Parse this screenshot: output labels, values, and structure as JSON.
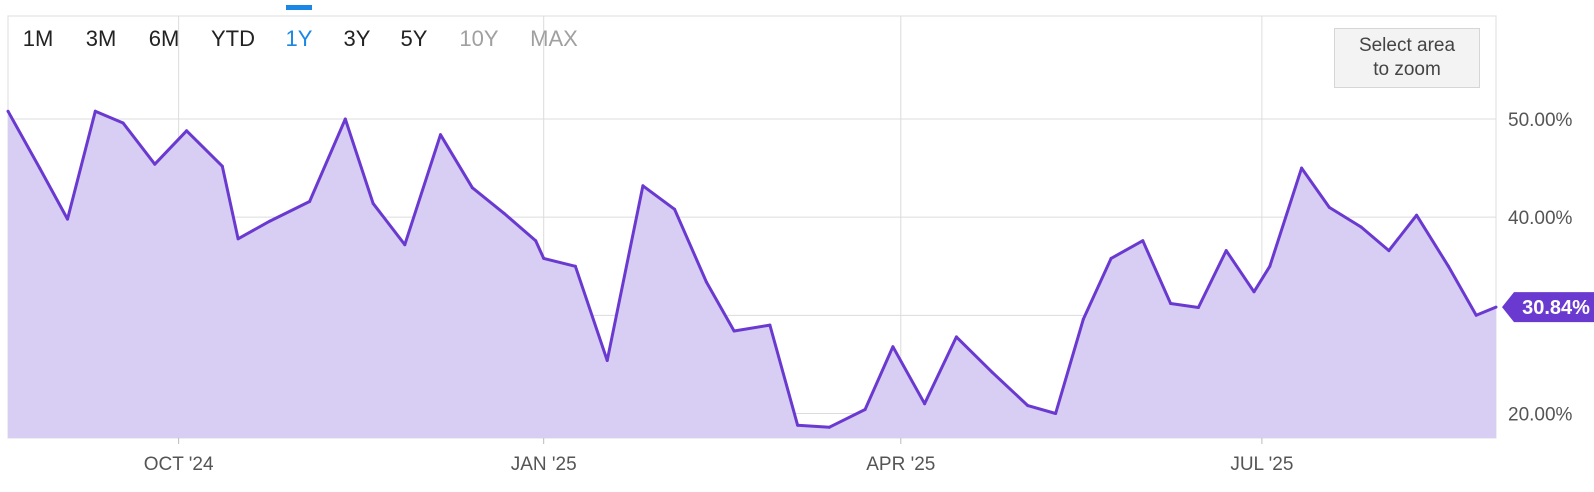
{
  "range_selector": {
    "buttons": [
      {
        "label": "1M",
        "state": "normal"
      },
      {
        "label": "3M",
        "state": "normal"
      },
      {
        "label": "6M",
        "state": "normal"
      },
      {
        "label": "YTD",
        "state": "normal"
      },
      {
        "label": "1Y",
        "state": "active"
      },
      {
        "label": "3Y",
        "state": "normal"
      },
      {
        "label": "5Y",
        "state": "normal"
      },
      {
        "label": "10Y",
        "state": "disabled"
      },
      {
        "label": "MAX",
        "state": "disabled"
      }
    ]
  },
  "zoom_hint": "Select area to zoom",
  "colors": {
    "line": "#6a3ad0",
    "area": "#d8cdf3",
    "active_button": "#1a87e6",
    "disabled_button": "#a0a0a0",
    "grid": "#dcdcdc",
    "badge": "#6a3ad0"
  },
  "chart_data": {
    "type": "area",
    "x_start": "2024-08-19",
    "x_end": "2025-08-29",
    "ylim": [
      17.5,
      60.5
    ],
    "y_ticks": [
      20,
      40,
      50
    ],
    "y_tick_labels": [
      "20.00%",
      "40.00%",
      "50.00%"
    ],
    "x_ticks": [
      "2024-10-01",
      "2025-01-01",
      "2025-04-01",
      "2025-07-01"
    ],
    "x_tick_labels": [
      "OCT '24",
      "JAN '25",
      "APR '25",
      "JUL '25"
    ],
    "grid": true,
    "last_value_label": "30.84%",
    "series": [
      {
        "x": [
          "2024-08-19",
          "2024-08-27",
          "2024-09-03",
          "2024-09-10",
          "2024-09-17",
          "2024-09-25",
          "2024-10-03",
          "2024-10-12",
          "2024-10-16",
          "2024-10-24",
          "2024-11-03",
          "2024-11-12",
          "2024-11-19",
          "2024-11-27",
          "2024-12-06",
          "2024-12-14",
          "2024-12-22",
          "2024-12-30",
          "2025-01-01",
          "2025-01-09",
          "2025-01-17",
          "2025-01-26",
          "2025-02-03",
          "2025-02-11",
          "2025-02-18",
          "2025-02-27",
          "2025-03-06",
          "2025-03-14",
          "2025-03-23",
          "2025-03-30",
          "2025-04-07",
          "2025-04-15",
          "2025-04-24",
          "2025-05-03",
          "2025-05-10",
          "2025-05-17",
          "2025-05-24",
          "2025-06-01",
          "2025-06-08",
          "2025-06-15",
          "2025-06-22",
          "2025-06-29",
          "2025-07-03",
          "2025-07-11",
          "2025-07-18",
          "2025-07-26",
          "2025-08-02",
          "2025-08-09",
          "2025-08-17",
          "2025-08-24",
          "2025-08-29"
        ],
        "values": [
          50.8,
          45.0,
          39.8,
          50.8,
          49.6,
          45.4,
          48.8,
          45.2,
          37.8,
          39.6,
          41.6,
          50.0,
          41.4,
          37.2,
          48.4,
          43.0,
          40.4,
          37.6,
          35.8,
          35.0,
          25.4,
          43.2,
          40.8,
          33.4,
          28.4,
          29.0,
          18.8,
          18.6,
          20.4,
          26.8,
          21.0,
          27.8,
          24.2,
          20.8,
          20.0,
          29.6,
          35.8,
          37.6,
          31.2,
          30.8,
          36.6,
          32.4,
          35.0,
          45.0,
          41.0,
          39.0,
          36.6,
          40.2,
          35.0,
          30.0,
          30.84
        ]
      }
    ]
  }
}
